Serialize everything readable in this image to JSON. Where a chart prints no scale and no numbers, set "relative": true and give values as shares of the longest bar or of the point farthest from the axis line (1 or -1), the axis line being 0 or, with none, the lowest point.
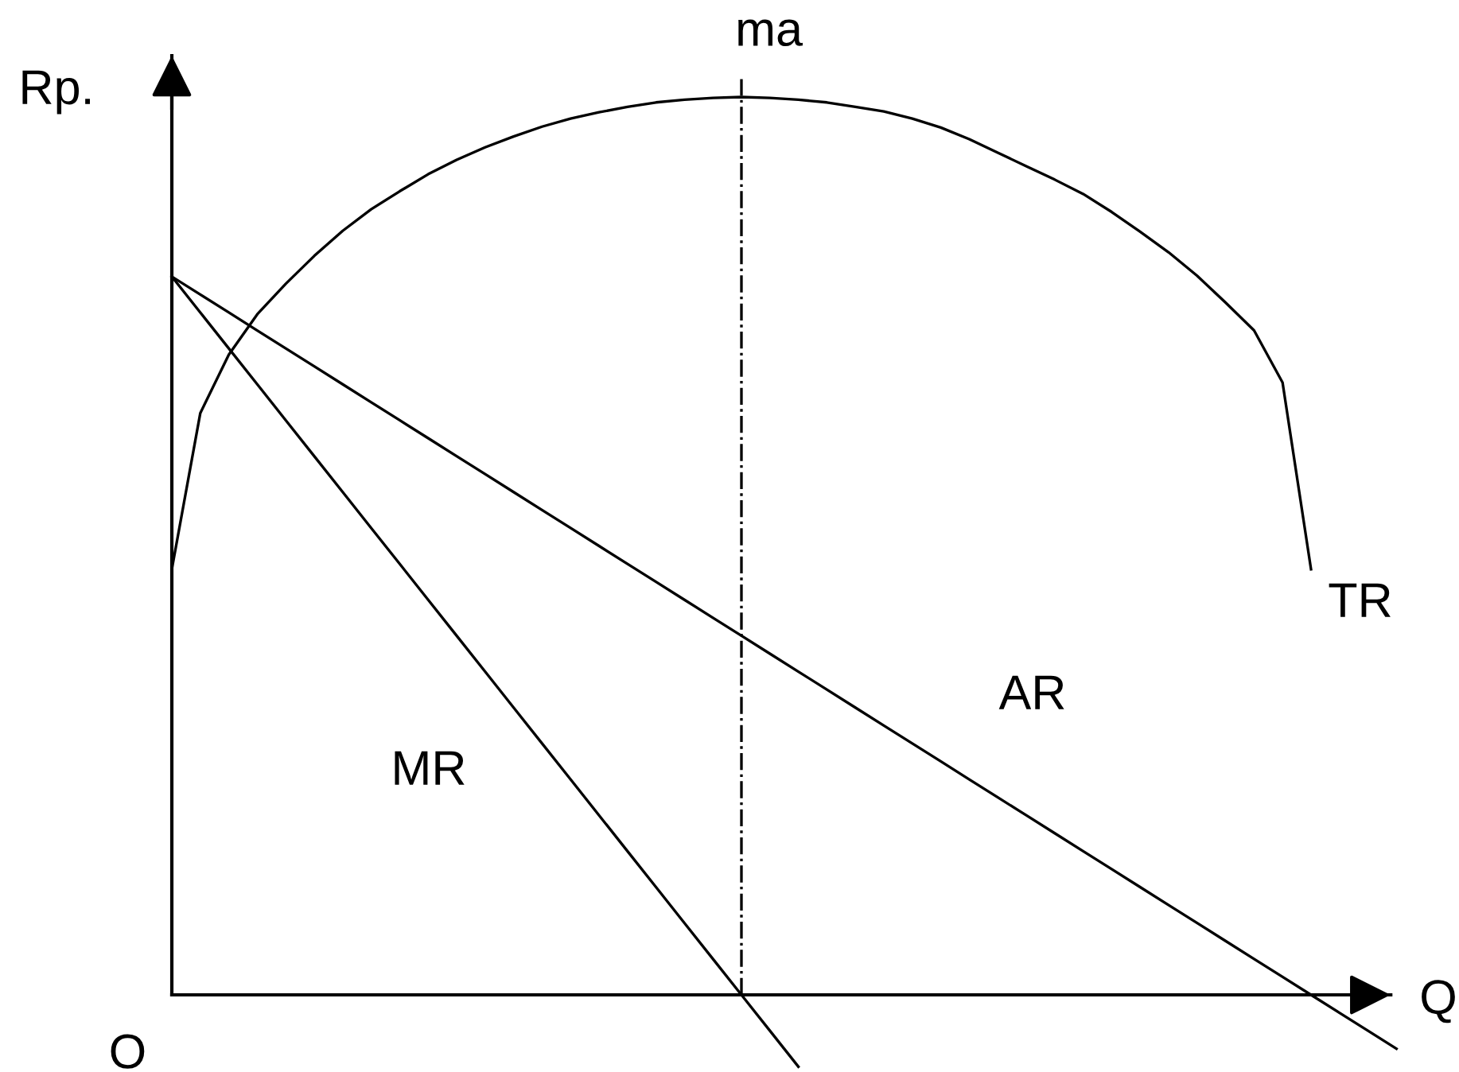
{
  "chart_data": {
    "type": "line",
    "relative": true,
    "xlabel": "Q",
    "ylabel": "Rp.",
    "categories": [
      null,
      null,
      null,
      null,
      null,
      null,
      null,
      null,
      null,
      null,
      null,
      null,
      null,
      null,
      null,
      null,
      null,
      null,
      null,
      null,
      null,
      null,
      null,
      null,
      null,
      null,
      null,
      null,
      null,
      null,
      null,
      null,
      null,
      null,
      null,
      null,
      null,
      null,
      null,
      null,
      null,
      null,
      null,
      null
    ],
    "series": [
      {
        "name": "MR",
        "color": "#000000",
        "values": [
          0.8,
          0.76,
          0.72,
          0.68,
          0.64,
          0.6,
          0.56,
          0.52,
          0.48,
          0.44,
          0.4,
          0.36,
          0.32,
          0.28,
          0.24,
          0.2,
          0.16,
          0.12,
          0.08,
          0.04,
          0,
          -0.04,
          -0.08,
          null,
          null,
          null,
          null,
          null,
          null,
          null,
          null,
          null,
          null,
          null,
          null,
          null,
          null,
          null,
          null,
          null,
          null,
          null,
          null,
          null
        ]
      },
      {
        "name": "AR",
        "color": "#000000",
        "values": [
          0.8,
          0.78,
          0.76,
          0.74,
          0.72,
          0.7,
          0.68,
          0.66,
          0.64,
          0.62,
          0.6,
          0.58,
          0.56,
          0.54,
          0.52,
          0.5,
          0.48,
          0.46,
          0.44,
          0.42,
          0.4,
          0.38,
          0.36,
          0.34,
          0.32,
          0.3,
          0.28,
          0.26,
          0.24,
          0.22,
          0.2,
          0.18,
          0.16,
          0.14,
          0.12,
          0.1,
          0.08,
          0.06,
          0.04,
          0.02,
          0,
          -0.02,
          -0.04,
          -0.06
        ]
      },
      {
        "name": "TR",
        "color": "#000000",
        "values": [
          0.474,
          0.648,
          0.713,
          0.758,
          0.792,
          0.823,
          0.851,
          0.875,
          0.895,
          0.914,
          0.93,
          0.944,
          0.956,
          0.967,
          0.976,
          0.983,
          0.989,
          0.994,
          0.997,
          0.999,
          1.0,
          0.999,
          0.997,
          0.994,
          0.989,
          0.984,
          0.976,
          0.966,
          0.953,
          0.938,
          0.923,
          0.908,
          0.892,
          0.872,
          0.85,
          0.827,
          0.801,
          0.771,
          0.74,
          0.682,
          0.474,
          null,
          null,
          null
        ]
      }
    ],
    "annotations": [
      "O",
      "ma"
    ]
  }
}
